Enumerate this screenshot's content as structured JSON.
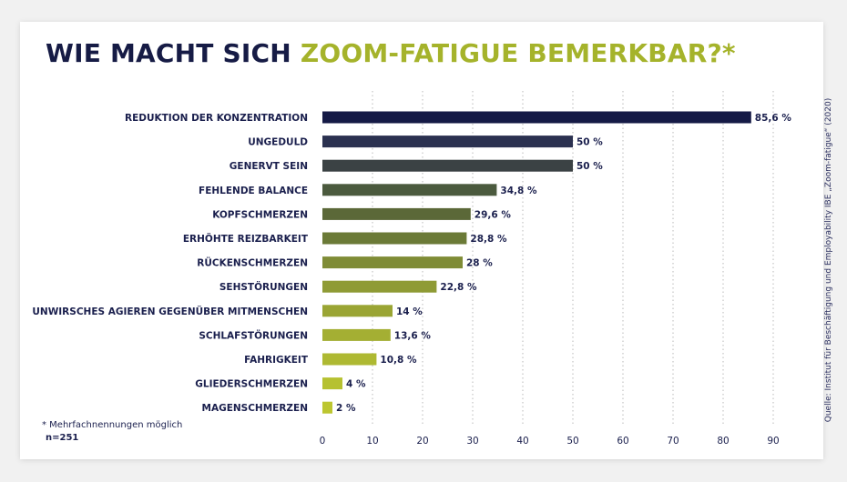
{
  "title": {
    "part_dark": "WIE MACHT SICH ",
    "part_accent": "ZOOM-FATIGUE BEMERKBAR?*"
  },
  "footnote": "* Mehrfachnennungen möglich",
  "sample_size": "n=251",
  "source": "Quelle: Institut für Beschäftigung und Employability IBE „Zoom-fatigue“ (2020)",
  "colors": {
    "title_dark": "#161b45",
    "title_accent": "#a5b32b",
    "label_text": "#1a1f4d",
    "bar_gradient": [
      "#151a46",
      "#2b3150",
      "#3b4244",
      "#4b5a3e",
      "#5b6838",
      "#6b7a37",
      "#7f8c36",
      "#8f9b35",
      "#9aa534",
      "#a4af33",
      "#aeb932",
      "#b6c131",
      "#bcc630"
    ]
  },
  "chart_data": {
    "type": "bar",
    "orientation": "horizontal",
    "title": "WIE MACHT SICH ZOOM-FATIGUE BEMERKBAR?*",
    "categories": [
      "REDUKTION DER KONZENTRATION",
      "UNGEDULD",
      "GENERVT SEIN",
      "FEHLENDE BALANCE",
      "KOPFSCHMERZEN",
      "ERHÖHTE REIZBARKEIT",
      "RÜCKENSCHMERZEN",
      "SEHSTÖRUNGEN",
      "UNWIRSCHES AGIEREN GEGENÜBER MITMENSCHEN",
      "SCHLAFSTÖRUNGEN",
      "FAHRIGKEIT",
      "GLIEDERSCHMERZEN",
      "MAGENSCHMERZEN"
    ],
    "values": [
      85.6,
      50,
      50,
      34.8,
      29.6,
      28.8,
      28,
      22.8,
      14,
      13.6,
      10.8,
      4,
      2
    ],
    "value_labels": [
      "85,6 %",
      "50 %",
      "50 %",
      "34,8 %",
      "29,6 %",
      "28,8 %",
      "28 %",
      "22,8 %",
      "14 %",
      "13,6 %",
      "10,8 %",
      "4 %",
      "2 %"
    ],
    "xlim": [
      0,
      90
    ],
    "xticks": [
      0,
      10,
      20,
      30,
      40,
      50,
      60,
      70,
      80,
      90
    ],
    "xtick_labels": [
      "0",
      "10",
      "20",
      "30",
      "40",
      "50",
      "60",
      "70",
      "80",
      "90"
    ],
    "xlabel": "",
    "ylabel": "",
    "grid": "vertical dotted",
    "legend": "none"
  }
}
